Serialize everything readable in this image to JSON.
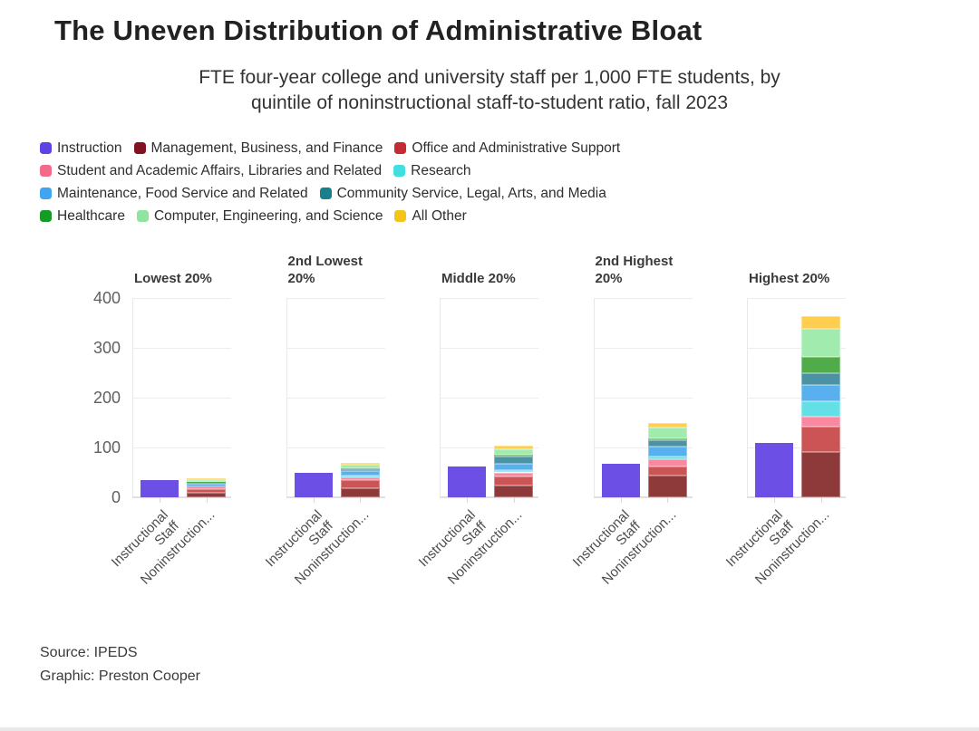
{
  "title": "The Uneven Distribution of Administrative Bloat",
  "subtitle_lines": [
    "FTE four-year college and university staff per 1,000 FTE students, by",
    "quintile of noninstructional staff-to-student ratio, fall 2023"
  ],
  "footer": {
    "source": "Source: IPEDS",
    "credit": "Graphic: Preston Cooper"
  },
  "chart_data": {
    "type": "bar",
    "stacked": true,
    "grid": true,
    "legend_position": "top",
    "panels": [
      "Lowest 20%",
      "2nd Lowest 20%",
      "Middle 20%",
      "2nd Highest 20%",
      "Highest 20%"
    ],
    "x_categories": [
      "Instructional Staff",
      "Noninstruction..."
    ],
    "x_tick_label_lines": [
      [
        "Instructional",
        "Staff"
      ],
      [
        "Noninstruction..."
      ]
    ],
    "ylim": [
      0,
      400
    ],
    "yticks": [
      0,
      100,
      200,
      300,
      400
    ],
    "series": [
      {
        "name": "Instruction",
        "column": "Instructional Staff",
        "legend_color": "#5b43e6",
        "bar_color": "#6c50e6",
        "values": [
          35,
          50,
          62,
          67,
          109
        ]
      },
      {
        "name": "Management, Business, and Finance",
        "column": "Noninstruction...",
        "legend_color": "#821223",
        "bar_color": "#8e3a3a",
        "values": [
          9,
          19,
          24,
          44,
          91
        ]
      },
      {
        "name": "Office and Administrative Support",
        "column": "Noninstruction...",
        "legend_color": "#c62b33",
        "bar_color": "#cd5455",
        "values": [
          7,
          15,
          17,
          17,
          50
        ]
      },
      {
        "name": "Student and Academic Affairs, Libraries and Related",
        "column": "Noninstruction...",
        "legend_color": "#f5698b",
        "bar_color": "#fc87a0",
        "values": [
          5,
          6,
          9,
          15,
          20
        ]
      },
      {
        "name": "Research",
        "column": "Noninstruction...",
        "legend_color": "#41dfe0",
        "bar_color": "#63e0e6",
        "values": [
          1,
          4,
          4,
          6,
          31
        ]
      },
      {
        "name": "Maintenance, Food Service and Related",
        "column": "Noninstruction...",
        "legend_color": "#3fa5f0",
        "bar_color": "#58b0ee",
        "values": [
          5,
          8,
          14,
          19,
          34
        ]
      },
      {
        "name": "Community Service, Legal, Arts, and Media",
        "column": "Noninstruction...",
        "legend_color": "#187f8b",
        "bar_color": "#4a93a3",
        "values": [
          3,
          5,
          13,
          14,
          23
        ]
      },
      {
        "name": "Healthcare",
        "column": "Noninstruction...",
        "legend_color": "#149c26",
        "bar_color": "#50ac48",
        "values": [
          1,
          2,
          4,
          4,
          33
        ]
      },
      {
        "name": "Computer, Engineering, and Science",
        "column": "Noninstruction...",
        "legend_color": "#8fe5a0",
        "bar_color": "#a0ebad",
        "values": [
          4,
          6,
          11,
          21,
          56
        ]
      },
      {
        "name": "All Other",
        "column": "Noninstruction...",
        "legend_color": "#f4c418",
        "bar_color": "#ffce4f",
        "values": [
          3,
          5,
          7,
          10,
          26
        ]
      }
    ],
    "legend_rows": [
      [
        0,
        1,
        2
      ],
      [
        3,
        4
      ],
      [
        5,
        6
      ],
      [
        7,
        8,
        9
      ]
    ]
  }
}
